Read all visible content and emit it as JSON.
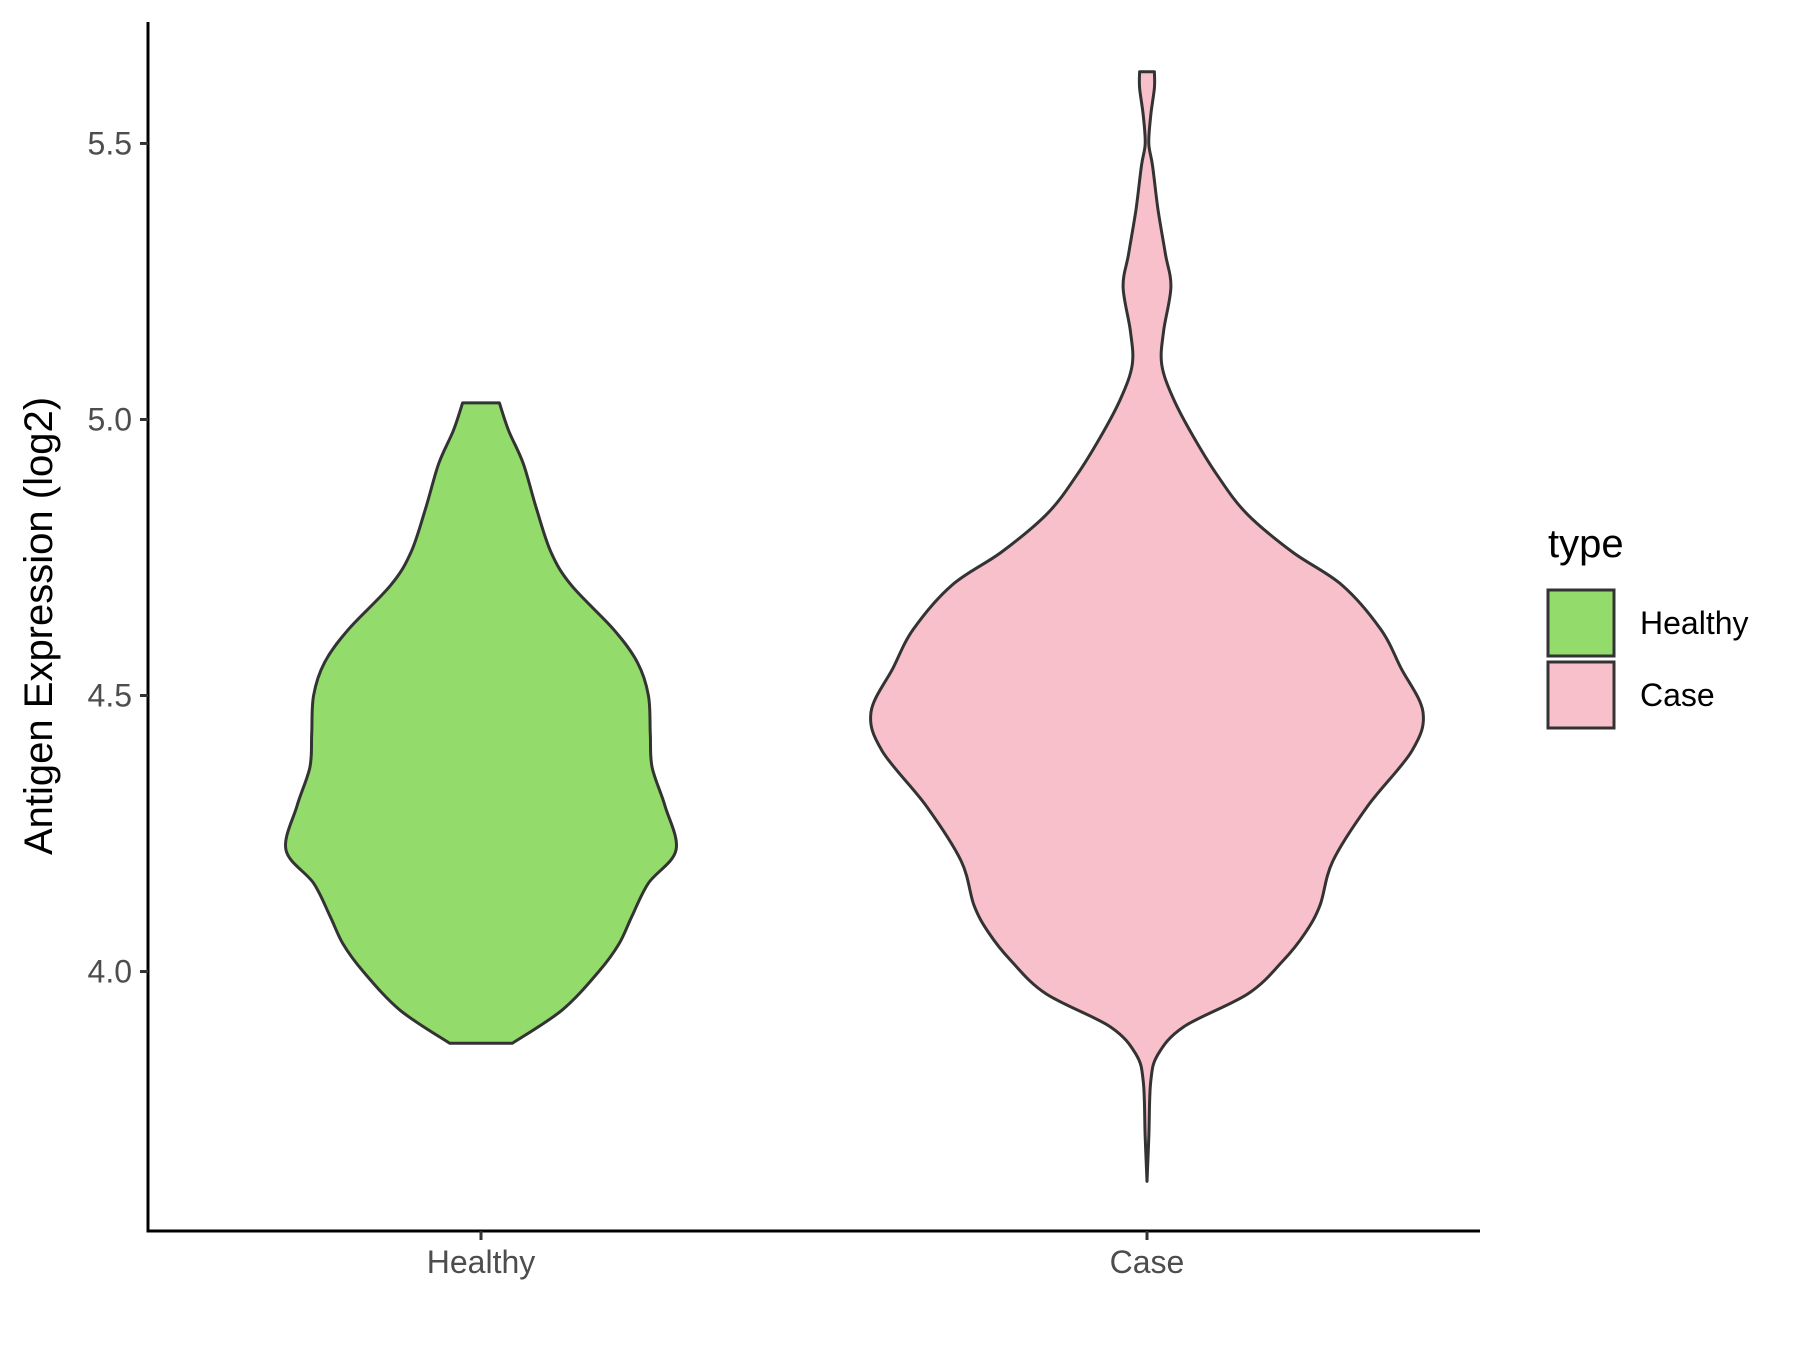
{
  "chart_data": {
    "type": "violin",
    "title": "",
    "xlabel": "",
    "ylabel": "Antigen Expression (log2)",
    "categories": [
      "Healthy",
      "Case"
    ],
    "ylim": [
      3.53,
      5.72
    ],
    "yticks": [
      4.0,
      4.5,
      5.0,
      5.5
    ],
    "ytick_labels": [
      "4.0",
      "4.5",
      "5.0",
      "5.5"
    ],
    "grid": false,
    "legend": {
      "title": "type",
      "position": "right",
      "entries": [
        {
          "label": "Healthy",
          "color": "#93dc6b"
        },
        {
          "label": "Case",
          "color": "#f7c0cb"
        }
      ]
    },
    "series": [
      {
        "name": "Healthy",
        "color": "#93dc6b",
        "min": 3.87,
        "max": 5.03,
        "density": [
          [
            3.87,
            0.17
          ],
          [
            3.93,
            0.44
          ],
          [
            4.0,
            0.64
          ],
          [
            4.05,
            0.75
          ],
          [
            4.1,
            0.82
          ],
          [
            4.16,
            0.91
          ],
          [
            4.22,
            1.06
          ],
          [
            4.3,
            1.0
          ],
          [
            4.37,
            0.93
          ],
          [
            4.43,
            0.92
          ],
          [
            4.5,
            0.91
          ],
          [
            4.56,
            0.85
          ],
          [
            4.62,
            0.72
          ],
          [
            4.7,
            0.49
          ],
          [
            4.76,
            0.38
          ],
          [
            4.84,
            0.3
          ],
          [
            4.92,
            0.23
          ],
          [
            4.98,
            0.15
          ],
          [
            5.03,
            0.1
          ]
        ]
      },
      {
        "name": "Case",
        "color": "#f7c0cb",
        "min": 3.62,
        "max": 5.63,
        "density": [
          [
            3.62,
            0.0
          ],
          [
            3.7,
            0.01
          ],
          [
            3.8,
            0.02
          ],
          [
            3.85,
            0.06
          ],
          [
            3.9,
            0.2
          ],
          [
            3.96,
            0.55
          ],
          [
            4.02,
            0.74
          ],
          [
            4.07,
            0.86
          ],
          [
            4.12,
            0.94
          ],
          [
            4.2,
            1.01
          ],
          [
            4.3,
            1.2
          ],
          [
            4.4,
            1.44
          ],
          [
            4.47,
            1.5
          ],
          [
            4.55,
            1.38
          ],
          [
            4.62,
            1.27
          ],
          [
            4.7,
            1.06
          ],
          [
            4.76,
            0.79
          ],
          [
            4.83,
            0.54
          ],
          [
            4.9,
            0.38
          ],
          [
            4.97,
            0.25
          ],
          [
            5.04,
            0.14
          ],
          [
            5.1,
            0.08
          ],
          [
            5.16,
            0.09
          ],
          [
            5.24,
            0.13
          ],
          [
            5.3,
            0.1
          ],
          [
            5.38,
            0.06
          ],
          [
            5.46,
            0.03
          ],
          [
            5.5,
            0.01
          ],
          [
            5.55,
            0.02
          ],
          [
            5.6,
            0.04
          ],
          [
            5.63,
            0.04
          ]
        ]
      }
    ]
  }
}
